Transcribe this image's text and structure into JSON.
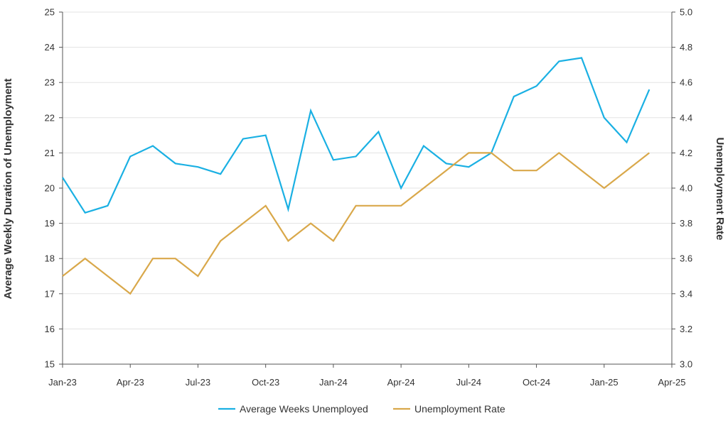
{
  "chart_data": {
    "type": "line",
    "title": "",
    "x": [
      "2023-01",
      "2023-02",
      "2023-03",
      "2023-04",
      "2023-05",
      "2023-06",
      "2023-07",
      "2023-08",
      "2023-09",
      "2023-10",
      "2023-11",
      "2023-12",
      "2024-01",
      "2024-02",
      "2024-03",
      "2024-04",
      "2024-05",
      "2024-06",
      "2024-07",
      "2024-08",
      "2024-09",
      "2024-10",
      "2024-11",
      "2024-12",
      "2025-01",
      "2025-02",
      "2025-03"
    ],
    "x_tick_labels": [
      "Jan-23",
      "Apr-23",
      "Jul-23",
      "Oct-23",
      "Jan-24",
      "Apr-24",
      "Jul-24",
      "Oct-24",
      "Jan-25",
      "Apr-25"
    ],
    "ylabel_left": "Average Weekly Duration of Unemployment",
    "ylabel_right": "Unemployment Rate",
    "ylim_left": [
      15,
      25
    ],
    "ylim_right": [
      3.0,
      5.0
    ],
    "y_ticks_left": [
      "15",
      "16",
      "17",
      "18",
      "19",
      "20",
      "21",
      "22",
      "23",
      "24",
      "25"
    ],
    "y_ticks_right": [
      "3.0",
      "3.2",
      "3.4",
      "3.6",
      "3.8",
      "4.0",
      "4.2",
      "4.4",
      "4.6",
      "4.8",
      "5.0"
    ],
    "grid": true,
    "legend_position": "bottom",
    "series": [
      {
        "name": "Average Weeks Unemployed",
        "axis": "left",
        "color": "#1ab0e3",
        "values": [
          20.3,
          19.3,
          19.5,
          20.9,
          21.2,
          20.7,
          20.6,
          20.4,
          21.4,
          21.5,
          19.4,
          22.2,
          20.8,
          20.9,
          21.6,
          20.0,
          21.2,
          20.7,
          20.6,
          21.0,
          22.6,
          22.9,
          23.6,
          23.7,
          22.0,
          21.3,
          22.8
        ]
      },
      {
        "name": "Unemployment Rate",
        "axis": "right",
        "color": "#d9a84a",
        "values": [
          3.5,
          3.6,
          3.5,
          3.4,
          3.6,
          3.6,
          3.5,
          3.7,
          3.8,
          3.9,
          3.7,
          3.8,
          3.7,
          3.9,
          3.9,
          3.9,
          4.0,
          4.1,
          4.2,
          4.2,
          4.1,
          4.1,
          4.2,
          4.1,
          4.0,
          4.1,
          4.2
        ]
      }
    ]
  }
}
